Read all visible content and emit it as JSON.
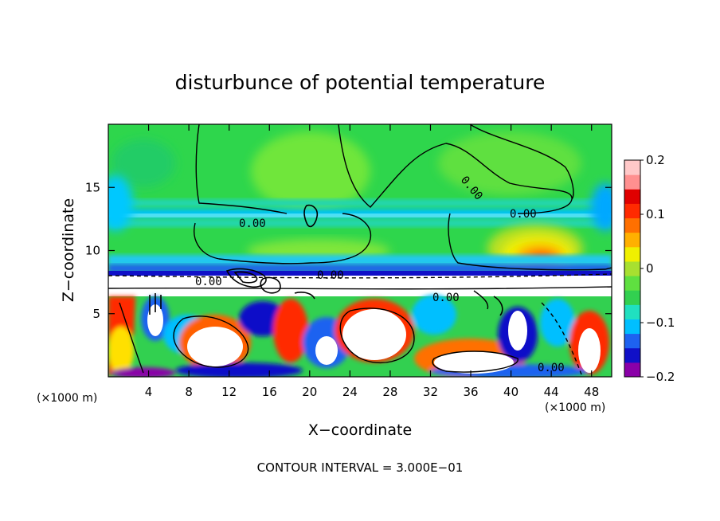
{
  "chart_data": {
    "type": "heatmap",
    "title": "disturbunce of potential temperature",
    "xlabel": "X−coordinate",
    "ylabel": "Z−coordinate",
    "x_unit": "(×1000 m)",
    "z_unit": "(×1000 m)",
    "x_ticks": [
      4,
      8,
      12,
      16,
      20,
      24,
      28,
      32,
      36,
      40,
      44,
      48
    ],
    "y_ticks": [
      5,
      10,
      15
    ],
    "xlim": [
      0,
      50
    ],
    "ylim": [
      0,
      20
    ],
    "colorbar": {
      "ticks": [
        0.2,
        0.1,
        0,
        -0.1,
        -0.2
      ],
      "tick_labels": [
        "0.2",
        "0.1",
        "0",
        "−0.1",
        "−0.2"
      ],
      "range": [
        -0.2,
        0.2
      ],
      "colors": [
        "#8a00a8",
        "#1010c8",
        "#1e62f0",
        "#00bfff",
        "#20e0c0",
        "#32d050",
        "#5fe040",
        "#a8e030",
        "#f0f000",
        "#ffb000",
        "#ff7000",
        "#ff2a00",
        "#e00000",
        "#ff9090",
        "#ffc8c8"
      ]
    },
    "contour_interval_note": "CONTOUR INTERVAL = 3.000E−01",
    "contour_labels": [
      "0.00",
      "0.00",
      "0.00",
      "0.00",
      "0.00",
      "0.00",
      "0.00"
    ],
    "grid": false,
    "legend": "colorbar-right"
  }
}
